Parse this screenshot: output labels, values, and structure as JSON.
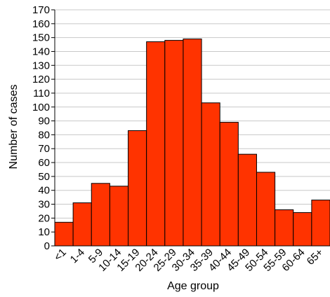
{
  "chart_data": {
    "type": "bar",
    "title": "",
    "xlabel": "Age group",
    "ylabel": "Number of cases",
    "categories": [
      "<1",
      "1-4",
      "5-9",
      "10-14",
      "15-19",
      "20-24",
      "25-29",
      "30-34",
      "35-39",
      "40-44",
      "45-49",
      "50-54",
      "55-59",
      "60-64",
      "65+"
    ],
    "values": [
      17,
      31,
      45,
      43,
      83,
      147,
      148,
      149,
      103,
      89,
      66,
      53,
      26,
      24,
      33
    ],
    "ylim": [
      0,
      170
    ],
    "yticks": [
      0,
      10,
      20,
      30,
      40,
      50,
      60,
      70,
      80,
      90,
      100,
      110,
      120,
      130,
      140,
      150,
      160,
      170
    ],
    "grid": true,
    "bar_color": "#ff3300",
    "bar_edge_color": "#000000",
    "legend": false
  }
}
